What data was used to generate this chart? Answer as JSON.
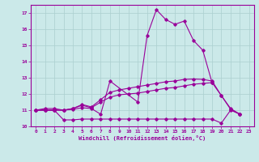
{
  "bg_color": "#cbe9e9",
  "grid_color": "#aacfcf",
  "line_color": "#990099",
  "xlim": [
    -0.5,
    23.5
  ],
  "ylim": [
    10.0,
    17.5
  ],
  "yticks": [
    10,
    11,
    12,
    13,
    14,
    15,
    16,
    17
  ],
  "xticks": [
    0,
    1,
    2,
    3,
    4,
    5,
    6,
    7,
    8,
    9,
    10,
    11,
    12,
    13,
    14,
    15,
    16,
    17,
    18,
    19,
    20,
    21,
    22,
    23
  ],
  "xlabel": "Windchill (Refroidissement éolien,°C)",
  "series": [
    {
      "x": [
        0,
        1,
        2,
        3,
        4,
        5,
        6,
        7,
        8,
        11,
        12,
        13,
        14,
        15,
        16,
        17,
        18,
        19
      ],
      "y": [
        11.0,
        11.1,
        11.1,
        11.0,
        11.05,
        11.15,
        11.1,
        10.75,
        12.8,
        11.5,
        15.6,
        17.2,
        16.6,
        16.3,
        16.5,
        15.3,
        14.7,
        12.7
      ]
    },
    {
      "x": [
        0,
        1,
        2,
        3,
        4,
        5,
        6,
        7,
        8,
        9,
        10,
        11,
        12,
        13,
        14,
        15,
        16,
        17,
        18,
        19,
        20,
        21,
        22
      ],
      "y": [
        11.0,
        11.0,
        11.0,
        10.4,
        10.4,
        10.45,
        10.45,
        10.45,
        10.45,
        10.45,
        10.45,
        10.45,
        10.45,
        10.45,
        10.45,
        10.45,
        10.45,
        10.45,
        10.45,
        10.45,
        10.2,
        11.0,
        10.75
      ]
    },
    {
      "x": [
        0,
        1,
        2,
        3,
        4,
        5,
        6,
        7,
        8,
        9,
        10,
        11,
        12,
        13,
        14,
        15,
        16,
        17,
        18,
        19,
        20,
        21,
        22
      ],
      "y": [
        11.0,
        11.0,
        11.0,
        11.0,
        11.1,
        11.3,
        11.15,
        11.5,
        11.8,
        11.95,
        12.0,
        12.05,
        12.15,
        12.25,
        12.35,
        12.4,
        12.5,
        12.6,
        12.65,
        12.7,
        11.9,
        11.05,
        10.75
      ]
    },
    {
      "x": [
        0,
        1,
        2,
        3,
        4,
        5,
        6,
        7,
        8,
        9,
        10,
        11,
        12,
        13,
        14,
        15,
        16,
        17,
        18,
        19,
        20,
        21,
        22
      ],
      "y": [
        11.0,
        11.0,
        11.0,
        11.0,
        11.1,
        11.35,
        11.2,
        11.65,
        12.1,
        12.25,
        12.35,
        12.45,
        12.55,
        12.65,
        12.75,
        12.8,
        12.9,
        12.92,
        12.9,
        12.8,
        11.9,
        11.1,
        10.75
      ]
    }
  ]
}
